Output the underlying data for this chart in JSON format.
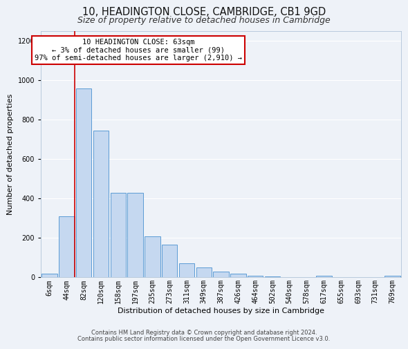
{
  "title": "10, HEADINGTON CLOSE, CAMBRIDGE, CB1 9GD",
  "subtitle": "Size of property relative to detached houses in Cambridge",
  "xlabel": "Distribution of detached houses by size in Cambridge",
  "ylabel": "Number of detached properties",
  "bar_labels": [
    "6sqm",
    "44sqm",
    "82sqm",
    "120sqm",
    "158sqm",
    "197sqm",
    "235sqm",
    "273sqm",
    "311sqm",
    "349sqm",
    "387sqm",
    "426sqm",
    "464sqm",
    "502sqm",
    "540sqm",
    "578sqm",
    "617sqm",
    "655sqm",
    "693sqm",
    "731sqm",
    "769sqm"
  ],
  "bar_heights": [
    20,
    310,
    960,
    745,
    430,
    430,
    210,
    165,
    70,
    50,
    30,
    20,
    10,
    5,
    3,
    2,
    10,
    2,
    1,
    1,
    10
  ],
  "bar_color": "#c5d8f0",
  "bar_edge_color": "#5b9bd5",
  "marker_bin_index": 1,
  "marker_line_color": "#cc0000",
  "annotation_line1": "10 HEADINGTON CLOSE: 63sqm",
  "annotation_line2": "← 3% of detached houses are smaller (99)",
  "annotation_line3": "97% of semi-detached houses are larger (2,910) →",
  "annotation_box_color": "#ffffff",
  "annotation_box_edge_color": "#cc0000",
  "ylim": [
    0,
    1250
  ],
  "yticks": [
    0,
    200,
    400,
    600,
    800,
    1000,
    1200
  ],
  "footer_line1": "Contains HM Land Registry data © Crown copyright and database right 2024.",
  "footer_line2": "Contains public sector information licensed under the Open Government Licence v3.0.",
  "bg_color": "#eef2f8",
  "grid_color": "#ffffff",
  "title_fontsize": 10.5,
  "subtitle_fontsize": 9,
  "axis_label_fontsize": 8,
  "tick_fontsize": 7,
  "annotation_fontsize": 7.5,
  "footer_fontsize": 6
}
